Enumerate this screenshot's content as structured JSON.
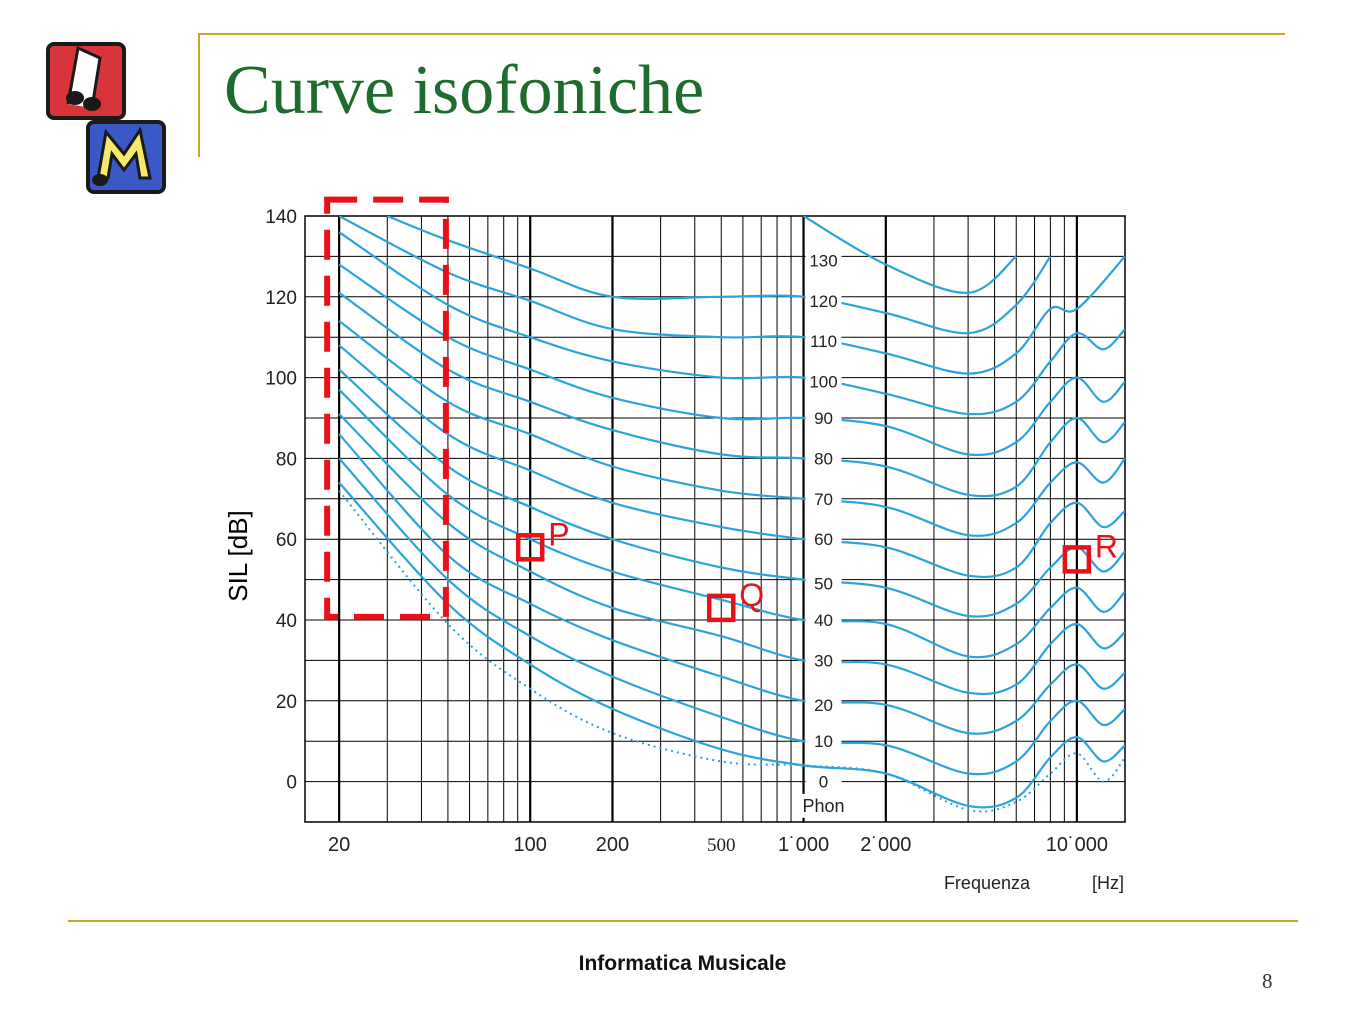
{
  "slide": {
    "title": "Curve isofoniche",
    "footer": "Informatica Musicale",
    "page_number": "8"
  },
  "colors": {
    "title": "#1e6b2e",
    "curve": "#2ba3dc",
    "grid": "#000000",
    "marker": "#e8111a",
    "rule": "#c8a62a"
  },
  "icons": [
    "music-note-logo-icon",
    "m-letter-logo-icon"
  ],
  "chart_data": {
    "type": "line",
    "xscale": "log",
    "xlim": [
      15,
      15000
    ],
    "ylim": [
      -10,
      140
    ],
    "xlabel": "Frequenza",
    "xunit": "[Hz]",
    "ylabel": "SIL [dB]",
    "grid": true,
    "xticks": [
      {
        "value": 20,
        "label": "20"
      },
      {
        "value": 100,
        "label": "100"
      },
      {
        "value": 200,
        "label": "200"
      },
      {
        "value": 500,
        "label": "500"
      },
      {
        "value": 1000,
        "label": "1˙000"
      },
      {
        "value": 2000,
        "label": "2˙000"
      },
      {
        "value": 10000,
        "label": "10˙000"
      }
    ],
    "yticks": [
      0,
      20,
      40,
      60,
      80,
      100,
      120,
      140
    ],
    "series_unit_label": "Phon",
    "series": [
      {
        "name": "130",
        "label_y": 129,
        "x": [
          1000,
          2000,
          4000,
          6000
        ],
        "y": [
          140,
          128,
          121,
          130
        ]
      },
      {
        "name": "120",
        "label_y": 119,
        "x": [
          30,
          50,
          100,
          200,
          500,
          1000,
          2000,
          4000,
          6000,
          8000
        ],
        "y": [
          140,
          134,
          127,
          120,
          120,
          120,
          116,
          111,
          118,
          130
        ]
      },
      {
        "name": "110",
        "label_y": 109,
        "x": [
          20,
          50,
          100,
          200,
          500,
          1000,
          2000,
          4000,
          6000,
          8000,
          10000,
          15000
        ],
        "y": [
          140,
          126,
          119,
          112,
          110,
          110,
          106,
          101,
          106,
          117,
          117,
          130
        ]
      },
      {
        "name": "100",
        "label_y": 99,
        "x": [
          20,
          50,
          100,
          200,
          500,
          1000,
          2000,
          4000,
          6000,
          8000,
          10000,
          12500,
          15000
        ],
        "y": [
          136,
          118,
          110,
          104,
          100,
          100,
          96,
          91,
          94,
          104,
          111,
          107,
          112
        ]
      },
      {
        "name": "90",
        "label_y": 90,
        "x": [
          20,
          50,
          100,
          200,
          500,
          1000,
          2000,
          4000,
          6000,
          8000,
          10000,
          12500,
          15000
        ],
        "y": [
          128,
          110,
          102,
          95,
          90,
          90,
          88,
          81,
          84,
          94,
          100,
          94,
          99
        ]
      },
      {
        "name": "80",
        "label_y": 80,
        "x": [
          20,
          50,
          100,
          200,
          500,
          1000,
          2000,
          4000,
          6000,
          8000,
          10000,
          12500,
          15000
        ],
        "y": [
          121,
          102,
          94,
          87,
          81,
          80,
          78,
          71,
          73,
          84,
          90,
          84,
          89
        ]
      },
      {
        "name": "70",
        "label_y": 70,
        "x": [
          20,
          50,
          100,
          200,
          500,
          1000,
          2000,
          4000,
          6000,
          8000,
          10000,
          12500,
          15000
        ],
        "y": [
          114,
          94,
          86,
          78,
          72,
          70,
          68,
          61,
          64,
          74,
          79,
          74,
          80
        ]
      },
      {
        "name": "60",
        "label_y": 60,
        "x": [
          20,
          50,
          100,
          200,
          500,
          1000,
          2000,
          4000,
          6000,
          8000,
          10000,
          12500,
          15000
        ],
        "y": [
          108,
          86,
          77,
          69,
          63,
          60,
          58,
          51,
          53,
          64,
          69,
          63,
          67
        ]
      },
      {
        "name": "50",
        "label_y": 49,
        "x": [
          20,
          50,
          100,
          200,
          500,
          1000,
          2000,
          4000,
          6000,
          8000,
          10000,
          12500,
          15000
        ],
        "y": [
          102,
          78,
          68,
          60,
          53,
          50,
          48,
          41,
          44,
          53,
          58,
          52,
          57
        ]
      },
      {
        "name": "40",
        "label_y": 40,
        "x": [
          20,
          50,
          100,
          200,
          500,
          1000,
          2000,
          4000,
          6000,
          8000,
          10000,
          12500,
          15000
        ],
        "y": [
          97,
          71,
          60,
          52,
          45,
          40,
          39,
          31,
          34,
          43,
          48,
          42,
          47
        ]
      },
      {
        "name": "30",
        "label_y": 30,
        "x": [
          20,
          50,
          100,
          200,
          500,
          1000,
          2000,
          4000,
          6000,
          8000,
          10000,
          12500,
          15000
        ],
        "y": [
          91,
          64,
          52,
          43,
          36,
          30,
          29,
          22,
          24,
          34,
          39,
          33,
          37
        ]
      },
      {
        "name": "20",
        "label_y": 19,
        "x": [
          20,
          50,
          100,
          200,
          500,
          1000,
          2000,
          4000,
          6000,
          8000,
          10000,
          12500,
          15000
        ],
        "y": [
          86,
          56,
          44,
          35,
          26,
          20,
          19,
          12,
          15,
          24,
          29,
          23,
          27
        ]
      },
      {
        "name": "10",
        "label_y": 10,
        "x": [
          20,
          50,
          100,
          200,
          500,
          1000,
          2000,
          4000,
          6000,
          8000,
          10000,
          12500,
          15000
        ],
        "y": [
          80,
          50,
          36,
          26,
          16,
          10,
          9,
          2,
          5,
          15,
          20,
          14,
          18
        ]
      },
      {
        "name": "0",
        "label_y": 0,
        "x": [
          20,
          50,
          100,
          200,
          500,
          1000,
          2000,
          4000,
          6000,
          8000,
          10000,
          12500,
          15000
        ],
        "y": [
          74,
          44,
          29,
          18,
          8,
          4,
          2,
          -6,
          -4,
          6,
          11,
          5,
          9
        ]
      },
      {
        "name": "",
        "style": "dotted",
        "x": [
          20,
          50,
          100,
          200,
          500,
          1000,
          2000,
          4000,
          6000,
          8000,
          10000,
          12500,
          15000
        ],
        "y": [
          72,
          39,
          23,
          12,
          5,
          4,
          2,
          -7,
          -5,
          2,
          7,
          0,
          6
        ]
      }
    ],
    "annotations": [
      {
        "label": "P",
        "x": 100,
        "y": 58
      },
      {
        "label": "Q",
        "x": 500,
        "y": 43
      },
      {
        "label": "R",
        "x": 10000,
        "y": 55
      }
    ],
    "highlight_region": {
      "x": [
        20,
        50
      ],
      "y": [
        42,
        150
      ]
    }
  }
}
